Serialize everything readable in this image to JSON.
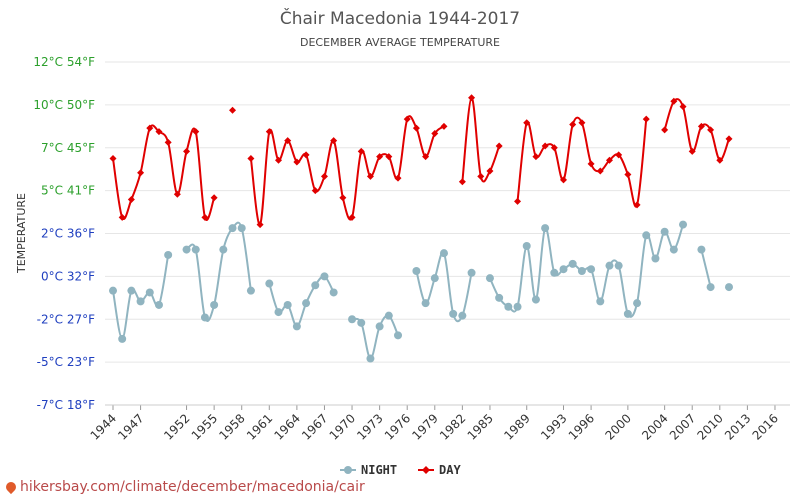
{
  "chart_data": {
    "type": "line",
    "title": "Čhair Macedonia 1944-2017",
    "subtitle": "DECEMBER AVERAGE TEMPERATURE",
    "ylabel": "TEMPERATURE",
    "ylim": [
      -7,
      12
    ],
    "y_ticks": [
      {
        "value": 12,
        "label": "12°C 54°F"
      },
      {
        "value": 9.6,
        "label": "10°C 50°F"
      },
      {
        "value": 7.2,
        "label": "7°C 45°F"
      },
      {
        "value": 4.8,
        "label": "5°C 41°F"
      },
      {
        "value": 2.4,
        "label": "2°C 36°F"
      },
      {
        "value": 0,
        "label": "0°C 32°F"
      },
      {
        "value": -2.4,
        "label": "-2°C 27°F"
      },
      {
        "value": -4.8,
        "label": "-5°C 23°F"
      },
      {
        "value": -7.2,
        "label": "-7°C 18°F"
      }
    ],
    "x_ticks": [
      "1944",
      "1947",
      "1952",
      "1955",
      "1958",
      "1961",
      "1964",
      "1967",
      "1970",
      "1973",
      "1976",
      "1979",
      "1982",
      "1985",
      "1989",
      "1993",
      "1996",
      "2000",
      "2004",
      "2007",
      "2010",
      "2013",
      "2016"
    ],
    "grid": true,
    "legend": "bottom",
    "series": [
      {
        "name": "NIGHT",
        "color": "#90b4c0",
        "points": [
          [
            1944,
            -0.8
          ],
          [
            1945,
            -3.5
          ],
          [
            1946,
            -0.8
          ],
          [
            1947,
            -1.4
          ],
          [
            1948,
            -0.9
          ],
          [
            1949,
            -1.6
          ],
          [
            1950,
            1.2
          ],
          [
            1952,
            1.5
          ],
          [
            1953,
            1.5
          ],
          [
            1954,
            -2.3
          ],
          [
            1955,
            -1.6
          ],
          [
            1956,
            1.5
          ],
          [
            1957,
            2.7
          ],
          [
            1958,
            2.7
          ],
          [
            1959,
            -0.8
          ],
          [
            1961,
            -0.4
          ],
          [
            1962,
            -2.0
          ],
          [
            1963,
            -1.6
          ],
          [
            1964,
            -2.8
          ],
          [
            1965,
            -1.5
          ],
          [
            1966,
            -0.5
          ],
          [
            1967,
            0.0
          ],
          [
            1968,
            -0.9
          ],
          [
            1970,
            -2.4
          ],
          [
            1971,
            -2.6
          ],
          [
            1972,
            -4.6
          ],
          [
            1973,
            -2.8
          ],
          [
            1974,
            -2.2
          ],
          [
            1975,
            -3.3
          ],
          [
            1977,
            0.3
          ],
          [
            1978,
            -1.5
          ],
          [
            1979,
            -0.1
          ],
          [
            1980,
            1.3
          ],
          [
            1981,
            -2.1
          ],
          [
            1982,
            -2.2
          ],
          [
            1983,
            0.2
          ],
          [
            1985,
            -0.1
          ],
          [
            1986,
            -1.2
          ],
          [
            1987,
            -1.7
          ],
          [
            1988,
            -1.7
          ],
          [
            1989,
            1.7
          ],
          [
            1990,
            -1.3
          ],
          [
            1991,
            2.7
          ],
          [
            1992,
            0.2
          ],
          [
            1993,
            0.4
          ],
          [
            1994,
            0.7
          ],
          [
            1995,
            0.3
          ],
          [
            1996,
            0.4
          ],
          [
            1997,
            -1.4
          ],
          [
            1998,
            0.6
          ],
          [
            1999,
            0.6
          ],
          [
            2000,
            -2.1
          ],
          [
            2001,
            -1.5
          ],
          [
            2002,
            2.3
          ],
          [
            2003,
            1.0
          ],
          [
            2004,
            2.5
          ],
          [
            2005,
            1.5
          ],
          [
            2006,
            2.9
          ],
          [
            2008,
            1.5
          ],
          [
            2009,
            -0.6
          ],
          [
            2011,
            -0.6
          ]
        ]
      },
      {
        "name": "DAY",
        "color": "#e00000",
        "points": [
          [
            1944,
            6.6
          ],
          [
            1945,
            3.3
          ],
          [
            1946,
            4.3
          ],
          [
            1947,
            5.8
          ],
          [
            1948,
            8.3
          ],
          [
            1949,
            8.1
          ],
          [
            1950,
            7.5
          ],
          [
            1951,
            4.6
          ],
          [
            1952,
            7.0
          ],
          [
            1953,
            8.1
          ],
          [
            1954,
            3.3
          ],
          [
            1955,
            4.4
          ],
          [
            1957,
            9.3
          ],
          [
            1959,
            6.6
          ],
          [
            1960,
            2.9
          ],
          [
            1961,
            8.1
          ],
          [
            1962,
            6.5
          ],
          [
            1963,
            7.6
          ],
          [
            1964,
            6.4
          ],
          [
            1965,
            6.8
          ],
          [
            1966,
            4.8
          ],
          [
            1967,
            5.6
          ],
          [
            1968,
            7.6
          ],
          [
            1969,
            4.4
          ],
          [
            1970,
            3.3
          ],
          [
            1971,
            7.0
          ],
          [
            1972,
            5.6
          ],
          [
            1973,
            6.7
          ],
          [
            1974,
            6.7
          ],
          [
            1975,
            5.5
          ],
          [
            1976,
            8.8
          ],
          [
            1977,
            8.3
          ],
          [
            1978,
            6.7
          ],
          [
            1979,
            8.0
          ],
          [
            1980,
            8.4
          ],
          [
            1982,
            5.3
          ],
          [
            1983,
            10.0
          ],
          [
            1984,
            5.6
          ],
          [
            1985,
            5.9
          ],
          [
            1986,
            7.3
          ],
          [
            1988,
            4.2
          ],
          [
            1989,
            8.6
          ],
          [
            1990,
            6.7
          ],
          [
            1991,
            7.3
          ],
          [
            1992,
            7.2
          ],
          [
            1993,
            5.4
          ],
          [
            1994,
            8.5
          ],
          [
            1995,
            8.6
          ],
          [
            1996,
            6.3
          ],
          [
            1997,
            5.9
          ],
          [
            1998,
            6.5
          ],
          [
            1999,
            6.8
          ],
          [
            2000,
            5.7
          ],
          [
            2001,
            4.0
          ],
          [
            2002,
            8.8
          ],
          [
            2004,
            8.2
          ],
          [
            2005,
            9.8
          ],
          [
            2006,
            9.5
          ],
          [
            2007,
            7.0
          ],
          [
            2008,
            8.4
          ],
          [
            2009,
            8.2
          ],
          [
            2010,
            6.5
          ],
          [
            2011,
            7.7
          ]
        ]
      }
    ]
  },
  "footer": {
    "url": "hikersbay.com/climate/december/macedonia/cair"
  }
}
